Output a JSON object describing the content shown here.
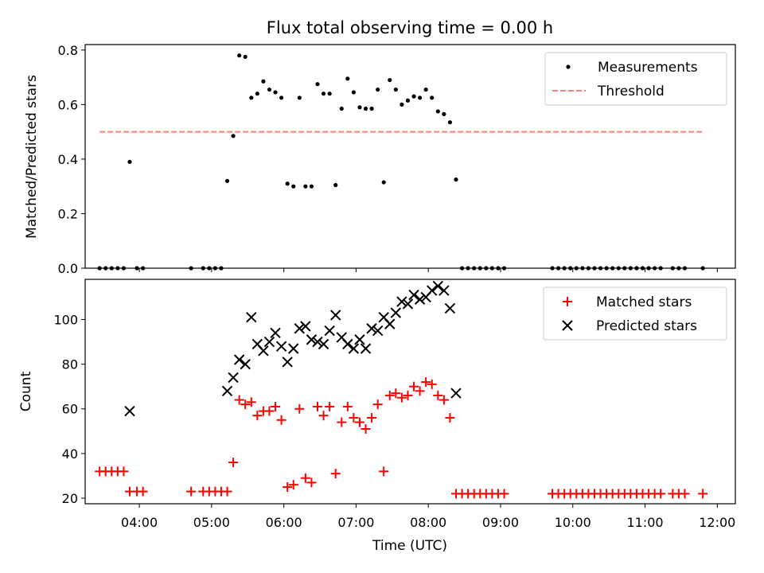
{
  "chart_data": [
    {
      "type": "scatter",
      "title": "Flux total observing time = 0.00 h",
      "xlabel": "",
      "ylabel": "Matched/Predicted stars",
      "xlim": [
        "03:15",
        "12:15"
      ],
      "ylim": [
        0,
        0.82
      ],
      "yticks": [
        0.0,
        0.2,
        0.4,
        0.6,
        0.8
      ],
      "ytick_labels": [
        "0.0",
        "0.2",
        "0.4",
        "0.6",
        "0.8"
      ],
      "legend_position": "top-right",
      "series": [
        {
          "name": "Measurements",
          "kind": "scatter",
          "marker": "dot",
          "color": "#000000",
          "points": [
            [
              "03:27",
              0
            ],
            [
              "03:32",
              0
            ],
            [
              "03:37",
              0
            ],
            [
              "03:42",
              0
            ],
            [
              "03:47",
              0
            ],
            [
              "03:52",
              0.39
            ],
            [
              "03:58",
              0
            ],
            [
              "04:03",
              0
            ],
            [
              "04:43",
              0
            ],
            [
              "04:53",
              0
            ],
            [
              "04:58",
              0
            ],
            [
              "05:03",
              0
            ],
            [
              "05:08",
              0
            ],
            [
              "05:13",
              0.32
            ],
            [
              "05:18",
              0.485
            ],
            [
              "05:23",
              0.78
            ],
            [
              "05:28",
              0.775
            ],
            [
              "05:33",
              0.625
            ],
            [
              "05:38",
              0.64
            ],
            [
              "05:43",
              0.685
            ],
            [
              "05:48",
              0.655
            ],
            [
              "05:53",
              0.645
            ],
            [
              "05:58",
              0.625
            ],
            [
              "06:03",
              0.31
            ],
            [
              "06:08",
              0.3
            ],
            [
              "06:13",
              0.625
            ],
            [
              "06:18",
              0.3
            ],
            [
              "06:23",
              0.3
            ],
            [
              "06:28",
              0.675
            ],
            [
              "06:33",
              0.64
            ],
            [
              "06:38",
              0.64
            ],
            [
              "06:43",
              0.305
            ],
            [
              "06:48",
              0.585
            ],
            [
              "06:53",
              0.695
            ],
            [
              "06:58",
              0.645
            ],
            [
              "07:03",
              0.59
            ],
            [
              "07:08",
              0.585
            ],
            [
              "07:13",
              0.585
            ],
            [
              "07:18",
              0.655
            ],
            [
              "07:23",
              0.315
            ],
            [
              "07:28",
              0.69
            ],
            [
              "07:33",
              0.655
            ],
            [
              "07:38",
              0.6
            ],
            [
              "07:43",
              0.615
            ],
            [
              "07:48",
              0.63
            ],
            [
              "07:53",
              0.625
            ],
            [
              "07:58",
              0.655
            ],
            [
              "08:03",
              0.625
            ],
            [
              "08:08",
              0.575
            ],
            [
              "08:13",
              0.565
            ],
            [
              "08:18",
              0.535
            ],
            [
              "08:23",
              0.325
            ],
            [
              "08:28",
              0
            ],
            [
              "08:33",
              0
            ],
            [
              "08:38",
              0
            ],
            [
              "08:43",
              0
            ],
            [
              "08:48",
              0
            ],
            [
              "08:53",
              0
            ],
            [
              "08:58",
              0
            ],
            [
              "09:03",
              0
            ],
            [
              "09:43",
              0
            ],
            [
              "09:48",
              0
            ],
            [
              "09:53",
              0
            ],
            [
              "09:58",
              0
            ],
            [
              "10:03",
              0
            ],
            [
              "10:08",
              0
            ],
            [
              "10:13",
              0
            ],
            [
              "10:18",
              0
            ],
            [
              "10:23",
              0
            ],
            [
              "10:28",
              0
            ],
            [
              "10:33",
              0
            ],
            [
              "10:38",
              0
            ],
            [
              "10:43",
              0
            ],
            [
              "10:48",
              0
            ],
            [
              "10:53",
              0
            ],
            [
              "10:58",
              0
            ],
            [
              "11:03",
              0
            ],
            [
              "11:08",
              0
            ],
            [
              "11:13",
              0
            ],
            [
              "11:23",
              0
            ],
            [
              "11:28",
              0
            ],
            [
              "11:33",
              0
            ],
            [
              "11:48",
              0
            ]
          ]
        },
        {
          "name": "Threshold",
          "kind": "hline",
          "style": "dashed",
          "color": "#ff7f7f",
          "y": 0.5,
          "x_range": [
            "03:27",
            "11:48"
          ]
        }
      ]
    },
    {
      "type": "scatter",
      "title": "",
      "xlabel": "Time (UTC)",
      "ylabel": "Count",
      "xlim": [
        "03:15",
        "12:15"
      ],
      "xticks": [
        "04:00",
        "05:00",
        "06:00",
        "07:00",
        "08:00",
        "09:00",
        "10:00",
        "11:00",
        "12:00"
      ],
      "ylim": [
        17.5,
        118
      ],
      "yticks": [
        20,
        40,
        60,
        80,
        100
      ],
      "ytick_labels": [
        "20",
        "40",
        "60",
        "80",
        "100"
      ],
      "legend_position": "top-right",
      "series": [
        {
          "name": "Matched stars",
          "marker": "+",
          "color": "#ff0000",
          "points": [
            [
              "03:27",
              32
            ],
            [
              "03:32",
              32
            ],
            [
              "03:37",
              32
            ],
            [
              "03:42",
              32
            ],
            [
              "03:47",
              32
            ],
            [
              "03:52",
              23
            ],
            [
              "03:58",
              23
            ],
            [
              "04:03",
              23
            ],
            [
              "04:43",
              23
            ],
            [
              "04:53",
              23
            ],
            [
              "04:58",
              23
            ],
            [
              "05:03",
              23
            ],
            [
              "05:08",
              23
            ],
            [
              "05:13",
              23
            ],
            [
              "05:18",
              36
            ],
            [
              "05:23",
              64
            ],
            [
              "05:28",
              62
            ],
            [
              "05:33",
              63
            ],
            [
              "05:38",
              57
            ],
            [
              "05:43",
              59
            ],
            [
              "05:48",
              59
            ],
            [
              "05:53",
              61
            ],
            [
              "05:58",
              55
            ],
            [
              "06:03",
              25
            ],
            [
              "06:08",
              26
            ],
            [
              "06:13",
              60
            ],
            [
              "06:18",
              29
            ],
            [
              "06:23",
              27
            ],
            [
              "06:28",
              61
            ],
            [
              "06:33",
              57
            ],
            [
              "06:38",
              61
            ],
            [
              "06:43",
              31
            ],
            [
              "06:48",
              54
            ],
            [
              "06:53",
              61
            ],
            [
              "06:58",
              56
            ],
            [
              "07:03",
              54
            ],
            [
              "07:08",
              51
            ],
            [
              "07:13",
              56
            ],
            [
              "07:18",
              62
            ],
            [
              "07:23",
              32
            ],
            [
              "07:28",
              66
            ],
            [
              "07:33",
              67
            ],
            [
              "07:38",
              65
            ],
            [
              "07:43",
              66
            ],
            [
              "07:48",
              70
            ],
            [
              "07:53",
              68
            ],
            [
              "07:58",
              72
            ],
            [
              "08:03",
              71
            ],
            [
              "08:08",
              66
            ],
            [
              "08:13",
              64
            ],
            [
              "08:18",
              56
            ],
            [
              "08:23",
              22
            ],
            [
              "08:28",
              22
            ],
            [
              "08:33",
              22
            ],
            [
              "08:38",
              22
            ],
            [
              "08:43",
              22
            ],
            [
              "08:48",
              22
            ],
            [
              "08:53",
              22
            ],
            [
              "08:58",
              22
            ],
            [
              "09:03",
              22
            ],
            [
              "09:43",
              22
            ],
            [
              "09:48",
              22
            ],
            [
              "09:53",
              22
            ],
            [
              "09:58",
              22
            ],
            [
              "10:03",
              22
            ],
            [
              "10:08",
              22
            ],
            [
              "10:13",
              22
            ],
            [
              "10:18",
              22
            ],
            [
              "10:23",
              22
            ],
            [
              "10:28",
              22
            ],
            [
              "10:33",
              22
            ],
            [
              "10:38",
              22
            ],
            [
              "10:43",
              22
            ],
            [
              "10:48",
              22
            ],
            [
              "10:53",
              22
            ],
            [
              "10:58",
              22
            ],
            [
              "11:03",
              22
            ],
            [
              "11:08",
              22
            ],
            [
              "11:13",
              22
            ],
            [
              "11:23",
              22
            ],
            [
              "11:28",
              22
            ],
            [
              "11:33",
              22
            ],
            [
              "11:48",
              22
            ]
          ]
        },
        {
          "name": "Predicted stars",
          "marker": "x",
          "color": "#000000",
          "points": [
            [
              "03:52",
              59
            ],
            [
              "05:13",
              68
            ],
            [
              "05:18",
              74
            ],
            [
              "05:23",
              82
            ],
            [
              "05:28",
              80
            ],
            [
              "05:33",
              101
            ],
            [
              "05:38",
              89
            ],
            [
              "05:43",
              86
            ],
            [
              "05:48",
              90
            ],
            [
              "05:53",
              94
            ],
            [
              "05:58",
              88
            ],
            [
              "06:03",
              81
            ],
            [
              "06:08",
              87
            ],
            [
              "06:13",
              96
            ],
            [
              "06:18",
              97
            ],
            [
              "06:23",
              91
            ],
            [
              "06:28",
              90
            ],
            [
              "06:33",
              89
            ],
            [
              "06:38",
              95
            ],
            [
              "06:43",
              102
            ],
            [
              "06:48",
              92
            ],
            [
              "06:53",
              89
            ],
            [
              "06:58",
              87
            ],
            [
              "07:03",
              91
            ],
            [
              "07:08",
              87
            ],
            [
              "07:13",
              96
            ],
            [
              "07:18",
              95
            ],
            [
              "07:23",
              101
            ],
            [
              "07:28",
              98
            ],
            [
              "07:33",
              103
            ],
            [
              "07:38",
              108
            ],
            [
              "07:43",
              107
            ],
            [
              "07:48",
              111
            ],
            [
              "07:53",
              109
            ],
            [
              "07:58",
              110
            ],
            [
              "08:03",
              113
            ],
            [
              "08:08",
              115
            ],
            [
              "08:13",
              113
            ],
            [
              "08:18",
              105
            ],
            [
              "08:23",
              67
            ]
          ]
        }
      ]
    }
  ]
}
